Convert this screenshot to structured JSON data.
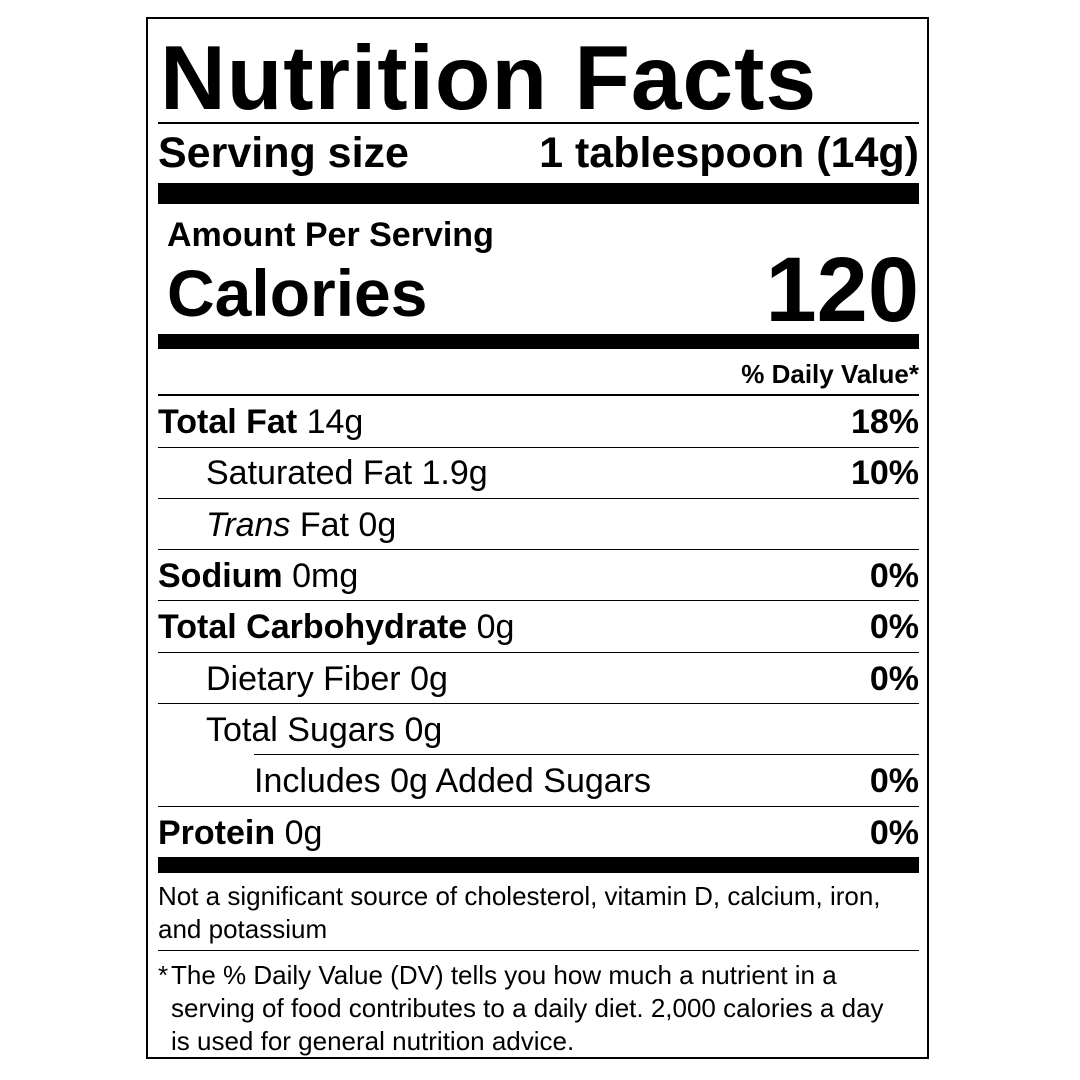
{
  "title": "Nutrition Facts",
  "serving": {
    "label": "Serving size",
    "value": "1 tablespoon (14g)"
  },
  "amount_per_serving": "Amount Per Serving",
  "calories": {
    "label": "Calories",
    "value": "120"
  },
  "daily_value_header": "% Daily Value*",
  "nutrients": {
    "total_fat": {
      "name": "Total Fat",
      "amount": "14g",
      "dv": "18%"
    },
    "saturated_fat": {
      "name": "Saturated Fat",
      "amount": "1.9g",
      "dv": "10%"
    },
    "trans_fat": {
      "name_italic": "Trans",
      "name": "Fat",
      "amount": "0g"
    },
    "sodium": {
      "name": "Sodium",
      "amount": "0mg",
      "dv": "0%"
    },
    "total_carbohydrate": {
      "name": "Total Carbohydrate",
      "amount": "0g",
      "dv": "0%"
    },
    "dietary_fiber": {
      "name": "Dietary Fiber",
      "amount": "0g",
      "dv": "0%"
    },
    "total_sugars": {
      "name": "Total Sugars",
      "amount": "0g"
    },
    "added_sugars": {
      "prefix": "Includes",
      "amount": "0g",
      "name": "Added Sugars",
      "dv": "0%"
    },
    "protein": {
      "name": "Protein",
      "amount": "0g",
      "dv": "0%"
    }
  },
  "footnotes": {
    "not_significant": "Not a significant source of cholesterol, vitamin D, calcium, iron, and potassium",
    "dv_asterisk": "*",
    "dv_explanation": "The % Daily Value (DV) tells you how much a nutrient in a serving of food contributes to a daily diet. 2,000 calories a day is used for general nutrition advice."
  }
}
